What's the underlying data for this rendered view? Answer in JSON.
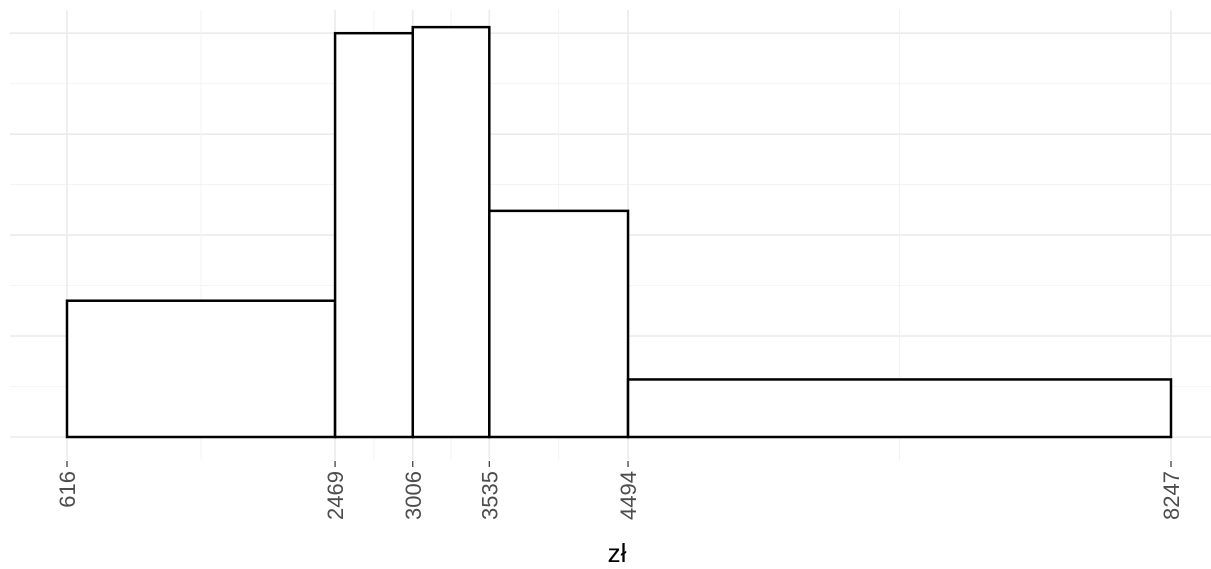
{
  "chart_data": {
    "type": "bar",
    "subtype": "histogram",
    "title": "",
    "xlabel": "zł",
    "ylabel": "",
    "bins": [
      {
        "from": 616,
        "to": 2469,
        "density": 0.135
      },
      {
        "from": 2469,
        "to": 3006,
        "density": 0.4
      },
      {
        "from": 3006,
        "to": 3535,
        "density": 0.406
      },
      {
        "from": 3535,
        "to": 4494,
        "density": 0.224
      },
      {
        "from": 4494,
        "to": 8247,
        "density": 0.057
      }
    ],
    "x_ticks": [
      616,
      2469,
      3006,
      3535,
      4494,
      8247
    ],
    "x_tick_labels": [
      "616",
      "2469",
      "3006",
      "3535",
      "4494",
      "8247"
    ],
    "xlim": [
      0,
      8500
    ],
    "ylim": [
      0,
      0.42
    ],
    "grid": true,
    "legend": "none",
    "colors": {
      "bar_fill": "#ffffff",
      "bar_stroke": "#000000",
      "grid": "#ebebeb"
    }
  }
}
